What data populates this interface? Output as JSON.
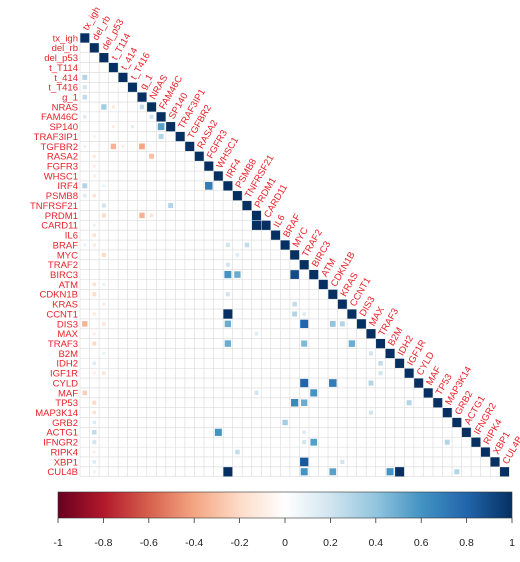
{
  "chart_data": {
    "type": "heatmap",
    "subtype": "correlation-lower-triangle",
    "variables": [
      "tx_igh",
      "del_rb",
      "del_p53",
      "t_T114",
      "t_414",
      "t_T416",
      "g_1",
      "NRAS",
      "FAM46C",
      "SP140",
      "TRAF3IP1",
      "TGFBR2",
      "RASA2",
      "FGFR3",
      "WHSC1",
      "IRF4",
      "PSMB8",
      "TNFRSF21",
      "PRDM1",
      "CARD11",
      "IL6",
      "BRAF",
      "MYC",
      "TRAF2",
      "BIRC3",
      "ATM",
      "CDKN1B",
      "KRAS",
      "CCNT1",
      "DIS3",
      "MAX",
      "TRAF3",
      "B2M",
      "IDH2",
      "IGF1R",
      "CYLD",
      "MAF",
      "TP53",
      "MAP3K14",
      "GRB2",
      "ACTG1",
      "IFNGR2",
      "RIPK4",
      "XBP1",
      "CUL4B"
    ],
    "color_scale": {
      "min": -1,
      "max": 1,
      "ticks": [
        "-1",
        "-0.8",
        "-0.6",
        "-0.4",
        "-0.2",
        "0",
        "0.2",
        "0.4",
        "0.6",
        "0.8",
        "1"
      ],
      "colors": [
        "#67001f",
        "#b2182b",
        "#d6604d",
        "#f4a582",
        "#fddbc7",
        "#ffffff",
        "#d1e5f0",
        "#92c5de",
        "#4393c3",
        "#2166ac",
        "#053061"
      ]
    },
    "diagonal_value": 1,
    "nonzero_cells": [
      {
        "row": "t_414",
        "col": "tx_igh",
        "value": 0.3
      },
      {
        "row": "t_T416",
        "col": "tx_igh",
        "value": 0.2
      },
      {
        "row": "g_1",
        "col": "tx_igh",
        "value": 0.25
      },
      {
        "row": "NRAS",
        "col": "del_p53",
        "value": 0.35
      },
      {
        "row": "NRAS",
        "col": "t_T114",
        "value": -0.12
      },
      {
        "row": "NRAS",
        "col": "g_1",
        "value": 0.25
      },
      {
        "row": "FAM46C",
        "col": "tx_igh",
        "value": 0.15
      },
      {
        "row": "FAM46C",
        "col": "NRAS",
        "value": 0.2
      },
      {
        "row": "SP140",
        "col": "t_T416",
        "value": 0.12
      },
      {
        "row": "SP140",
        "col": "FAM46C",
        "value": 0.55
      },
      {
        "row": "SP140",
        "col": "t_T114",
        "value": -0.1
      },
      {
        "row": "TRAF3IP1",
        "col": "FAM46C",
        "value": 0.3
      },
      {
        "row": "TRAF3IP1",
        "col": "del_rb",
        "value": -0.08
      },
      {
        "row": "TGFBR2",
        "col": "t_T114",
        "value": -0.35
      },
      {
        "row": "TGFBR2",
        "col": "t_414",
        "value": -0.1
      },
      {
        "row": "TGFBR2",
        "col": "g_1",
        "value": -0.4
      },
      {
        "row": "TGFBR2",
        "col": "tx_igh",
        "value": 0.1
      },
      {
        "row": "RASA2",
        "col": "del_rb",
        "value": -0.12
      },
      {
        "row": "RASA2",
        "col": "NRAS",
        "value": -0.3
      },
      {
        "row": "FGFR3",
        "col": "del_rb",
        "value": -0.1
      },
      {
        "row": "WHSC1",
        "col": "del_rb",
        "value": -0.1
      },
      {
        "row": "IRF4",
        "col": "tx_igh",
        "value": 0.3
      },
      {
        "row": "IRF4",
        "col": "del_p53",
        "value": 0.1
      },
      {
        "row": "IRF4",
        "col": "FGFR3",
        "value": 0.7
      },
      {
        "row": "PSMB8",
        "col": "tx_igh",
        "value": 0.15
      },
      {
        "row": "PSMB8",
        "col": "del_rb",
        "value": -0.15
      },
      {
        "row": "TNFRSF21",
        "col": "del_p53",
        "value": 0.2
      },
      {
        "row": "TNFRSF21",
        "col": "SP140",
        "value": 0.3
      },
      {
        "row": "PRDM1",
        "col": "del_p53",
        "value": -0.2
      },
      {
        "row": "PRDM1",
        "col": "g_1",
        "value": -0.35
      },
      {
        "row": "PRDM1",
        "col": "NRAS",
        "value": -0.15
      },
      {
        "row": "CARD11",
        "col": "PRDM1",
        "value": 1
      },
      {
        "row": "CARD11",
        "col": "del_rb",
        "value": 0.1
      },
      {
        "row": "IL6",
        "col": "del_rb",
        "value": -0.15
      },
      {
        "row": "BRAF",
        "col": "del_rb",
        "value": -0.12
      },
      {
        "row": "BRAF",
        "col": "tx_igh",
        "value": 0.1
      },
      {
        "row": "BRAF",
        "col": "TNFRSF21",
        "value": 0.25
      },
      {
        "row": "BRAF",
        "col": "IRF4",
        "value": 0.2
      },
      {
        "row": "MYC",
        "col": "del_p53",
        "value": -0.2
      },
      {
        "row": "MYC",
        "col": "PSMB8",
        "value": 0.15
      },
      {
        "row": "TRAF2",
        "col": "IRF4",
        "value": 0.2
      },
      {
        "row": "BIRC3",
        "col": "IRF4",
        "value": 0.6
      },
      {
        "row": "BIRC3",
        "col": "PSMB8",
        "value": 0.5
      },
      {
        "row": "BIRC3",
        "col": "MYC",
        "value": 0.9
      },
      {
        "row": "ATM",
        "col": "del_rb",
        "value": -0.15
      },
      {
        "row": "ATM",
        "col": "del_p53",
        "value": 0.1
      },
      {
        "row": "CDKN1B",
        "col": "del_rb",
        "value": -0.2
      },
      {
        "row": "CDKN1B",
        "col": "IRF4",
        "value": 0.2
      },
      {
        "row": "KRAS",
        "col": "del_p53",
        "value": -0.1
      },
      {
        "row": "KRAS",
        "col": "MYC",
        "value": 0.25
      },
      {
        "row": "CCNT1",
        "col": "del_rb",
        "value": -0.12
      },
      {
        "row": "CCNT1",
        "col": "IRF4",
        "value": 1
      },
      {
        "row": "CCNT1",
        "col": "TRAF2",
        "value": 0.15
      },
      {
        "row": "CCNT1",
        "col": "MYC",
        "value": 0.3
      },
      {
        "row": "DIS3",
        "col": "tx_igh",
        "value": -0.35
      },
      {
        "row": "DIS3",
        "col": "del_p53",
        "value": -0.15
      },
      {
        "row": "DIS3",
        "col": "IRF4",
        "value": 0.5
      },
      {
        "row": "DIS3",
        "col": "TRAF2",
        "value": 0.8
      },
      {
        "row": "DIS3",
        "col": "CDKN1B",
        "value": 0.4
      },
      {
        "row": "DIS3",
        "col": "KRAS",
        "value": 0.3
      },
      {
        "row": "MAX",
        "col": "del_rb",
        "value": -0.1
      },
      {
        "row": "MAX",
        "col": "PRDM1",
        "value": 0.15
      },
      {
        "row": "TRAF3",
        "col": "del_rb",
        "value": -0.2
      },
      {
        "row": "TRAF3",
        "col": "IRF4",
        "value": 0.5
      },
      {
        "row": "TRAF3",
        "col": "TRAF2",
        "value": 0.45
      },
      {
        "row": "TRAF3",
        "col": "CCNT1",
        "value": 0.5
      },
      {
        "row": "B2M",
        "col": "del_p53",
        "value": 0.1
      },
      {
        "row": "B2M",
        "col": "MAX",
        "value": 0.2
      },
      {
        "row": "IDH2",
        "col": "del_rb",
        "value": 0.15
      },
      {
        "row": "IDH2",
        "col": "TRAF3",
        "value": 0.25
      },
      {
        "row": "IGF1R",
        "col": "del_rb",
        "value": -0.1
      },
      {
        "row": "IGF1R",
        "col": "del_p53",
        "value": -0.15
      },
      {
        "row": "IGF1R",
        "col": "TRAF3",
        "value": 0.2
      },
      {
        "row": "CYLD",
        "col": "TRAF2",
        "value": 0.8
      },
      {
        "row": "CYLD",
        "col": "CDKN1B",
        "value": 0.7
      },
      {
        "row": "CYLD",
        "col": "MAX",
        "value": 0.3
      },
      {
        "row": "MAF",
        "col": "tx_igh",
        "value": -0.25
      },
      {
        "row": "MAF",
        "col": "BIRC3",
        "value": 0.6
      },
      {
        "row": "MAF",
        "col": "PRDM1",
        "value": 0.2
      },
      {
        "row": "TP53",
        "col": "del_rb",
        "value": -0.2
      },
      {
        "row": "TP53",
        "col": "MYC",
        "value": 0.65
      },
      {
        "row": "TP53",
        "col": "TRAF2",
        "value": 0.5
      },
      {
        "row": "TP53",
        "col": "IGF1R",
        "value": 0.3
      },
      {
        "row": "MAP3K14",
        "col": "del_rb",
        "value": -0.15
      },
      {
        "row": "MAP3K14",
        "col": "MAX",
        "value": 0.2
      },
      {
        "row": "GRB2",
        "col": "del_rb",
        "value": 0.15
      },
      {
        "row": "GRB2",
        "col": "BRAF",
        "value": 0.35
      },
      {
        "row": "ACTG1",
        "col": "del_rb",
        "value": 0.25
      },
      {
        "row": "ACTG1",
        "col": "WHSC1",
        "value": 0.6
      },
      {
        "row": "ACTG1",
        "col": "TRAF2",
        "value": 0.15
      },
      {
        "row": "IFNGR2",
        "col": "del_rb",
        "value": 0.2
      },
      {
        "row": "IFNGR2",
        "col": "BIRC3",
        "value": 0.55
      },
      {
        "row": "IFNGR2",
        "col": "MAP3K14",
        "value": 0.3
      },
      {
        "row": "IFNGR2",
        "col": "TRAF2",
        "value": 0.2
      },
      {
        "row": "RIPK4",
        "col": "del_rb",
        "value": -0.1
      },
      {
        "row": "RIPK4",
        "col": "PSMB8",
        "value": 0.25
      },
      {
        "row": "XBP1",
        "col": "del_rb",
        "value": 0.15
      },
      {
        "row": "XBP1",
        "col": "TRAF2",
        "value": 0.85
      },
      {
        "row": "XBP1",
        "col": "KRAS",
        "value": 0.2
      },
      {
        "row": "CUL4B",
        "col": "del_rb",
        "value": 0.1
      },
      {
        "row": "CUL4B",
        "col": "IRF4",
        "value": 1
      },
      {
        "row": "CUL4B",
        "col": "TRAF2",
        "value": 0.6
      },
      {
        "row": "CUL4B",
        "col": "CDKN1B",
        "value": 0.55
      },
      {
        "row": "CUL4B",
        "col": "IDH2",
        "value": 1
      },
      {
        "row": "CUL4B",
        "col": "B2M",
        "value": 0.6
      },
      {
        "row": "CUL4B",
        "col": "GRB2",
        "value": 0.3
      }
    ]
  }
}
